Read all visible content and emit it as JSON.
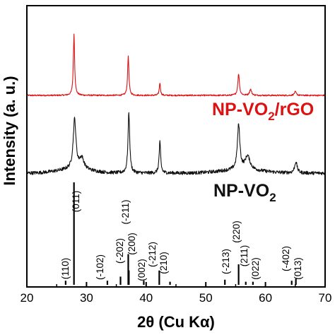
{
  "chart_data": {
    "type": "line",
    "xlabel": "2θ (Cu Kα)",
    "ylabel": "Intensity (a. u.)",
    "xlim": [
      20,
      70
    ],
    "x_ticks": [
      20,
      30,
      40,
      50,
      60,
      70
    ],
    "y_ticks_shown": false,
    "grid": false,
    "colors": {
      "np_vo2_rgo": "#dd1111",
      "np_vo2": "#111111",
      "reference": "#000000"
    },
    "series": [
      {
        "name": "NP-VO2/rGO",
        "label_main": "NP-VO",
        "label_sub": "2",
        "label_tail": "/rGO",
        "color": "#dd1111",
        "baseline": 1.0,
        "noise": 0.012,
        "peaks": [
          {
            "x": 27.9,
            "h": 1.02,
            "w": 0.13
          },
          {
            "x": 37.0,
            "h": 0.66,
            "w": 0.13
          },
          {
            "x": 42.3,
            "h": 0.21,
            "w": 0.12
          },
          {
            "x": 55.5,
            "h": 0.36,
            "w": 0.16
          },
          {
            "x": 57.5,
            "h": 0.1,
            "w": 0.2
          },
          {
            "x": 65.0,
            "h": 0.06,
            "w": 0.2
          }
        ]
      },
      {
        "name": "NP-VO2",
        "label_main": "NP-VO",
        "label_sub": "2",
        "label_tail": "",
        "color": "#111111",
        "baseline": 0.0,
        "noise": 0.028,
        "peaks": [
          {
            "x": 28.0,
            "h": 0.8,
            "w": 0.28
          },
          {
            "x": 29.2,
            "h": 0.18,
            "w": 0.45
          },
          {
            "x": 37.1,
            "h": 0.98,
            "w": 0.17
          },
          {
            "x": 42.3,
            "h": 0.5,
            "w": 0.15
          },
          {
            "x": 55.5,
            "h": 0.72,
            "w": 0.25
          },
          {
            "x": 57.0,
            "h": 0.22,
            "w": 0.5
          },
          {
            "x": 65.1,
            "h": 0.18,
            "w": 0.25
          }
        ]
      }
    ],
    "reference_lines": [
      {
        "x": 26.5,
        "h": 0.04,
        "label": "(110)"
      },
      {
        "x": 27.9,
        "h": 1.0,
        "label": "(011)"
      },
      {
        "x": 33.5,
        "h": 0.04,
        "label": "(-102)"
      },
      {
        "x": 35.7,
        "h": 0.08,
        "label": "(-202)"
      },
      {
        "x": 37.0,
        "h": 0.3,
        "label": "(-211)"
      },
      {
        "x": 37.1,
        "h": 0.14,
        "label": "(200)"
      },
      {
        "x": 39.6,
        "h": 0.04,
        "label": "(002)"
      },
      {
        "x": 42.2,
        "h": 0.14,
        "label": "(-212)"
      },
      {
        "x": 44.0,
        "h": 0.03,
        "label": "(210)"
      },
      {
        "x": 53.2,
        "h": 0.05,
        "label": "(-213)"
      },
      {
        "x": 55.5,
        "h": 0.2,
        "label": "(220)"
      },
      {
        "x": 56.7,
        "h": 0.03,
        "label": "(211)"
      },
      {
        "x": 57.9,
        "h": 0.03,
        "label": "(022)"
      },
      {
        "x": 64.4,
        "h": 0.04,
        "label": "(-402)"
      },
      {
        "x": 65.1,
        "h": 0.06,
        "label": "(013)"
      }
    ]
  }
}
